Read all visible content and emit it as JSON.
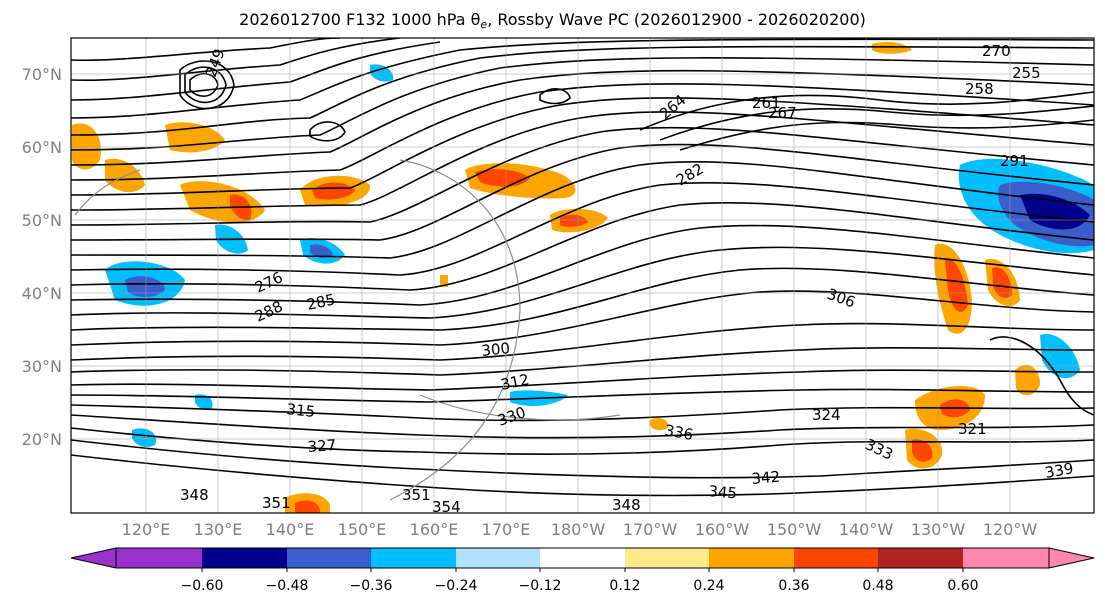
{
  "title": {
    "prefix": "2026012700 F132 1000 hPa θ",
    "subscript": "e",
    "suffix": ", Rossby Wave PC (2026012900 - 2026020200)"
  },
  "map": {
    "lat_labels": [
      "70°N",
      "60°N",
      "50°N",
      "40°N",
      "30°N",
      "20°N"
    ],
    "lon_labels": [
      "120°E",
      "130°E",
      "140°E",
      "150°E",
      "160°E",
      "170°E",
      "180°W",
      "170°W",
      "160°W",
      "150°W",
      "140°W",
      "130°W",
      "120°W"
    ],
    "contour_labels": [
      "249",
      "255",
      "258",
      "261",
      "267",
      "270",
      "264",
      "276",
      "282",
      "285",
      "288",
      "291",
      "300",
      "306",
      "312",
      "315",
      "321",
      "324",
      "327",
      "330",
      "333",
      "336",
      "339",
      "342",
      "345",
      "348",
      "351",
      "354"
    ],
    "positive_color": "#ffa500",
    "negative_color": "#00bfff"
  },
  "colorbar": {
    "tick_labels": [
      "−0.60",
      "−0.48",
      "−0.36",
      "−0.24",
      "−0.12",
      "0.12",
      "0.24",
      "0.36",
      "0.48",
      "0.60"
    ],
    "colors": [
      "#9932cc",
      "#00008b",
      "#3a5fcd",
      "#00bfff",
      "#b0e2ff",
      "#ffffff",
      "#ffe98a",
      "#ffa500",
      "#ff4500",
      "#b22222",
      "#ff88b0"
    ]
  }
}
